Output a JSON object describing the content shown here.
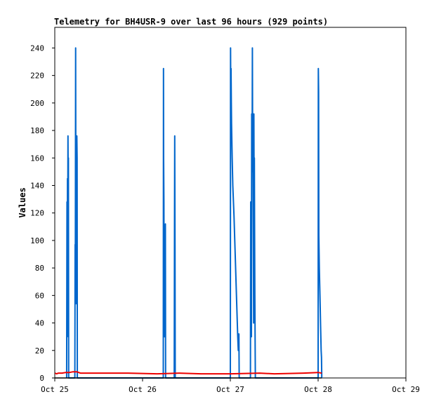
{
  "chart_data": {
    "type": "line",
    "title": "Telemetry for BH4USR-9 over last 96 hours (929 points)",
    "xlabel": "",
    "ylabel": "Values",
    "ylim": [
      0,
      255
    ],
    "xlim": [
      "2024-10-25T00:00",
      "2024-10-29T00:00"
    ],
    "x_ticks": [
      "Oct 25",
      "Oct 26",
      "Oct 27",
      "Oct 28",
      "Oct 29"
    ],
    "y_ticks": [
      0,
      20,
      40,
      60,
      80,
      100,
      120,
      140,
      160,
      180,
      200,
      220,
      240
    ],
    "grid": false,
    "legend": false,
    "series": [
      {
        "color": "#0066cc",
        "points": [
          [
            "2024-10-25T03:15",
            0
          ],
          [
            "2024-10-25T03:20",
            128
          ],
          [
            "2024-10-25T03:24",
            30
          ],
          [
            "2024-10-25T03:28",
            145
          ],
          [
            "2024-10-25T03:32",
            90
          ],
          [
            "2024-10-25T03:36",
            176
          ],
          [
            "2024-10-25T03:40",
            140
          ],
          [
            "2024-10-25T03:44",
            160
          ],
          [
            "2024-10-25T03:48",
            0
          ],
          [
            "2024-10-25T05:30",
            0
          ],
          [
            "2024-10-25T05:34",
            97
          ],
          [
            "2024-10-25T05:38",
            90
          ],
          [
            "2024-10-25T05:42",
            240
          ],
          [
            "2024-10-25T05:46",
            140
          ],
          [
            "2024-10-25T05:50",
            54
          ],
          [
            "2024-10-25T05:54",
            124
          ],
          [
            "2024-10-25T05:58",
            88
          ],
          [
            "2024-10-25T06:02",
            176
          ],
          [
            "2024-10-25T06:06",
            160
          ],
          [
            "2024-10-25T06:10",
            0
          ],
          [
            "2024-10-26T05:40",
            0
          ],
          [
            "2024-10-26T05:43",
            225
          ],
          [
            "2024-10-26T05:46",
            160
          ],
          [
            "2024-10-26T05:50",
            128
          ],
          [
            "2024-10-26T05:54",
            48
          ],
          [
            "2024-10-26T05:58",
            30
          ],
          [
            "2024-10-26T06:02",
            80
          ],
          [
            "2024-10-26T06:06",
            30
          ],
          [
            "2024-10-26T06:10",
            80
          ],
          [
            "2024-10-26T06:14",
            112
          ],
          [
            "2024-10-26T06:18",
            0
          ],
          [
            "2024-10-26T08:40",
            0
          ],
          [
            "2024-10-26T08:44",
            112
          ],
          [
            "2024-10-26T08:48",
            176
          ],
          [
            "2024-10-26T08:52",
            96
          ],
          [
            "2024-10-26T08:56",
            0
          ],
          [
            "2024-10-27T00:00",
            0
          ],
          [
            "2024-10-27T00:04",
            240
          ],
          [
            "2024-10-27T00:08",
            192
          ],
          [
            "2024-10-27T00:12",
            225
          ],
          [
            "2024-10-27T00:16",
            200
          ],
          [
            "2024-10-27T00:20",
            185
          ],
          [
            "2024-10-27T00:30",
            160
          ],
          [
            "2024-10-27T00:40",
            140
          ],
          [
            "2024-10-27T01:00",
            118
          ],
          [
            "2024-10-27T01:20",
            90
          ],
          [
            "2024-10-27T01:40",
            60
          ],
          [
            "2024-10-27T02:00",
            32
          ],
          [
            "2024-10-27T02:10",
            20
          ],
          [
            "2024-10-27T02:15",
            32
          ],
          [
            "2024-10-27T02:20",
            32
          ],
          [
            "2024-10-27T02:25",
            0
          ],
          [
            "2024-10-27T05:30",
            0
          ],
          [
            "2024-10-27T05:34",
            128
          ],
          [
            "2024-10-27T05:38",
            112
          ],
          [
            "2024-10-27T05:42",
            65
          ],
          [
            "2024-10-27T05:46",
            30
          ],
          [
            "2024-10-27T05:50",
            192
          ],
          [
            "2024-10-27T05:54",
            150
          ],
          [
            "2024-10-27T05:58",
            176
          ],
          [
            "2024-10-27T06:02",
            240
          ],
          [
            "2024-10-27T06:06",
            160
          ],
          [
            "2024-10-27T06:10",
            192
          ],
          [
            "2024-10-27T06:14",
            130
          ],
          [
            "2024-10-27T06:18",
            95
          ],
          [
            "2024-10-27T06:22",
            40
          ],
          [
            "2024-10-27T06:26",
            192
          ],
          [
            "2024-10-27T06:30",
            128
          ],
          [
            "2024-10-27T06:34",
            160
          ],
          [
            "2024-10-27T06:38",
            112
          ],
          [
            "2024-10-27T06:42",
            60
          ],
          [
            "2024-10-27T06:50",
            0
          ],
          [
            "2024-10-28T00:00",
            0
          ],
          [
            "2024-10-28T00:04",
            225
          ],
          [
            "2024-10-28T00:08",
            208
          ],
          [
            "2024-10-28T00:12",
            104
          ],
          [
            "2024-10-28T00:20",
            80
          ],
          [
            "2024-10-28T00:30",
            60
          ],
          [
            "2024-10-28T00:40",
            38
          ],
          [
            "2024-10-28T00:50",
            20
          ],
          [
            "2024-10-28T00:55",
            15
          ],
          [
            "2024-10-28T01:00",
            0
          ]
        ]
      },
      {
        "color": "#ee0000",
        "points": [
          [
            "2024-10-25T00:05",
            3.5
          ],
          [
            "2024-10-25T00:30",
            3
          ],
          [
            "2024-10-25T01:00",
            3.5
          ],
          [
            "2024-10-25T02:00",
            3.5
          ],
          [
            "2024-10-25T03:00",
            4
          ],
          [
            "2024-10-25T04:00",
            4
          ],
          [
            "2024-10-25T05:00",
            4.5
          ],
          [
            "2024-10-25T06:00",
            4.5
          ],
          [
            "2024-10-25T07:00",
            3.5
          ],
          [
            "2024-10-25T10:00",
            3.5
          ],
          [
            "2024-10-25T20:00",
            3.5
          ],
          [
            "2024-10-26T04:00",
            3
          ],
          [
            "2024-10-26T10:00",
            3.5
          ],
          [
            "2024-10-26T16:00",
            3
          ],
          [
            "2024-10-27T00:00",
            3
          ],
          [
            "2024-10-27T08:00",
            3.5
          ],
          [
            "2024-10-27T12:00",
            3
          ],
          [
            "2024-10-27T20:00",
            3.5
          ],
          [
            "2024-10-28T00:00",
            4
          ],
          [
            "2024-10-28T01:00",
            3.5
          ]
        ]
      },
      {
        "color": "#000000",
        "points": [
          [
            "2024-10-25T00:05",
            0
          ],
          [
            "2024-10-28T01:00",
            0
          ]
        ]
      }
    ]
  }
}
